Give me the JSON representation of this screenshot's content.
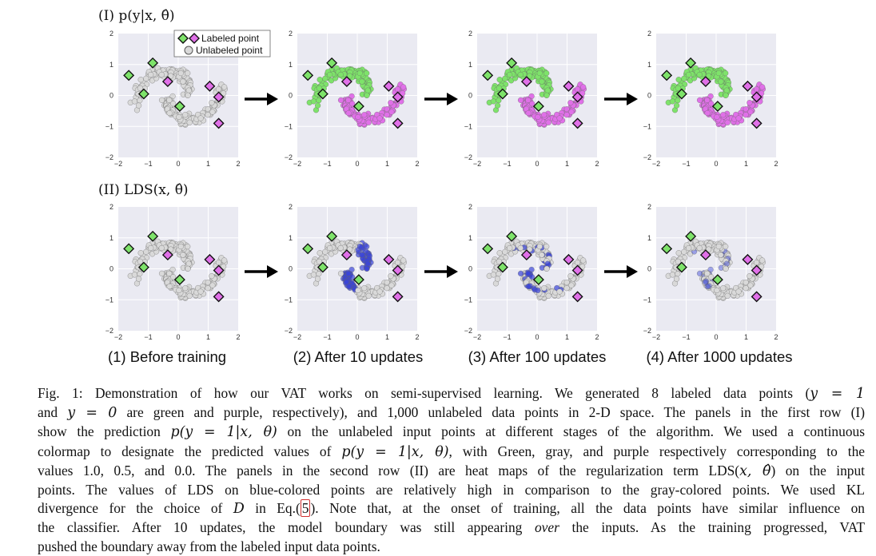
{
  "rows": [
    {
      "title": "(I) p(y|x, θ̂)"
    },
    {
      "title": "(II) LDS(x, θ̂)"
    }
  ],
  "axes": {
    "xticks": [
      "−2",
      "−1",
      "0",
      "1",
      "2"
    ],
    "yticks": [
      "2",
      "1",
      "0",
      "−1",
      "−2"
    ]
  },
  "legend": {
    "labeled": "Labeled point",
    "unlabeled": "Unlabeled point"
  },
  "panel_captions": [
    "(1) Before training",
    "(2) After 10 updates",
    "(3) After 100 updates",
    "(4) After 1000 updates"
  ],
  "colors": {
    "green": "#7ee36a",
    "purple": "#e070e8",
    "gray": "#d9d9d9",
    "blue": "#3a45d8",
    "panel_bg": "#eaeaf2"
  },
  "chart_data": {
    "type": "scatter",
    "xlim": [
      -2,
      2
    ],
    "ylim": [
      -2,
      2
    ],
    "grid": true,
    "legend_position": "top-right",
    "labeled_points": [
      {
        "x": -1.65,
        "y": 0.65,
        "class": "green"
      },
      {
        "x": -0.85,
        "y": 1.05,
        "class": "green"
      },
      {
        "x": -1.15,
        "y": 0.05,
        "class": "green"
      },
      {
        "x": 0.05,
        "y": -0.35,
        "class": "green"
      },
      {
        "x": -0.35,
        "y": 0.45,
        "class": "purple"
      },
      {
        "x": 1.35,
        "y": -0.05,
        "class": "purple"
      },
      {
        "x": 1.35,
        "y": -0.9,
        "class": "purple"
      },
      {
        "x": 1.05,
        "y": 0.3,
        "class": "purple"
      }
    ]
  },
  "caption": {
    "l1": "Fig. 1: Demonstration of how our VAT works on semi-supervised learning. We generated 8 labeled data points (",
    "l1_math": "y = 1",
    "l2a": "and ",
    "l2_math": "y = 0",
    "l2b": " are green and purple, respectively), and 1,000 unlabeled data points in 2-D space. The panels in the first row (I)",
    "l3a": "show the prediction ",
    "l3_math": "p(y = 1|x, θ)",
    "l3b": " on the unlabeled input points at different stages of the algorithm. We used a continuous",
    "l4a": "colormap to designate the predicted values of ",
    "l4_math": "p(y = 1|x, θ)",
    "l4b": ", with Green, gray, and purple respectively corresponding to the",
    "l5a": "values 1.0, 0.5, and 0.0. The panels in the second row (II) are heat maps of the regularization term LDS(",
    "l5_math": "x, θ̂",
    "l5b": ") on the input",
    "l6": "points. The values of LDS on blue-colored points are relatively high in comparison to the gray-colored points. We used KL",
    "l7a": "divergence for the choice of ",
    "l7_math": "D",
    "l7b": " in Eq.(",
    "l7_ref": "5",
    "l7c": "). Note that, at the onset of training, all the data points have similar influence on",
    "l8a": "the classifier. After 10 updates, the model boundary was still appearing ",
    "l8_em": "over",
    "l8b": " the inputs. As the training progressed, VAT",
    "l9": "pushed the boundary away from the labeled input data points."
  }
}
